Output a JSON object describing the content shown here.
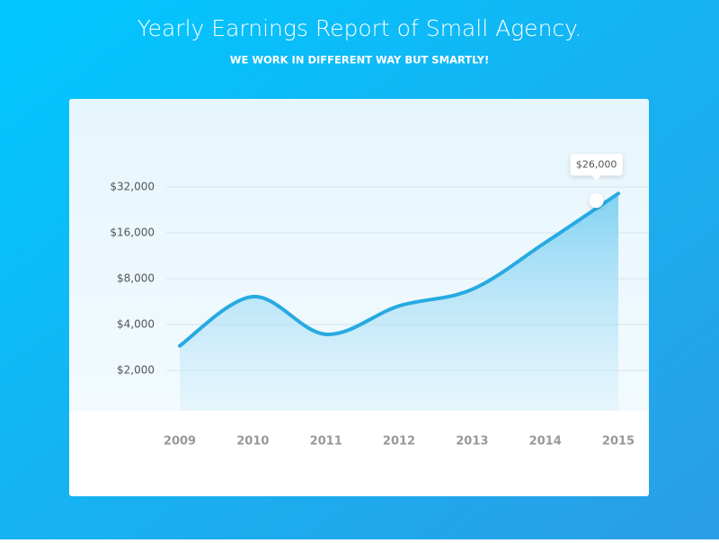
{
  "chart_data": {
    "type": "line",
    "title": "Yearly Earnings Report of Small Agency.",
    "subtitle": "WE WORK IN DIFFERENT WAY BUT  SMARTLY!",
    "categories": [
      "2009",
      "2010",
      "2011",
      "2012",
      "2013",
      "2014",
      "2015"
    ],
    "values": [
      2900,
      6100,
      3450,
      5300,
      6800,
      13800,
      29000
    ],
    "color": "#27aae1",
    "log_scale": true,
    "ylim": [
      1000,
      64000
    ],
    "yticks": [
      {
        "value": 2000,
        "label": "$2,000"
      },
      {
        "value": 4000,
        "label": "$4,000"
      },
      {
        "value": 8000,
        "label": "$8,000"
      },
      {
        "value": 16000,
        "label": "$16,000"
      },
      {
        "value": 32000,
        "label": "$32,000"
      }
    ],
    "grid": true,
    "annotation": {
      "value": 26000,
      "label": "$26,000"
    }
  }
}
